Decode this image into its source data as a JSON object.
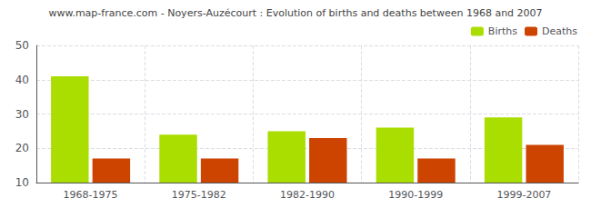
{
  "chart_data": {
    "type": "bar",
    "title": "www.map-france.com - Noyers-Auzécourt : Evolution of births and deaths between 1968 and 2007",
    "categories": [
      "1968-1975",
      "1975-1982",
      "1982-1990",
      "1990-1999",
      "1999-2007"
    ],
    "series": [
      {
        "name": "Births",
        "color": "#aadd00",
        "values": [
          41,
          24,
          25,
          26,
          29
        ]
      },
      {
        "name": "Deaths",
        "color": "#cc4400",
        "values": [
          17,
          17,
          23,
          17,
          21
        ]
      }
    ],
    "ylim": [
      10,
      50
    ],
    "yticks": [
      10,
      20,
      30,
      40,
      50
    ],
    "grid": true,
    "legend": "upper right"
  }
}
